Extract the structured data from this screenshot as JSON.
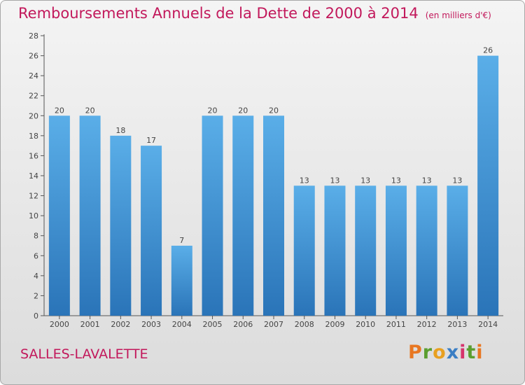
{
  "header": {
    "title": "Remboursements Annuels de la Dette de 2000 à 2014",
    "unit": "(en milliers d'€)"
  },
  "footer": {
    "commune": "SALLES-LAVALETTE",
    "brand": [
      "P",
      "r",
      "o",
      "x",
      "i",
      "t",
      "i"
    ]
  },
  "colors": {
    "title": "#c2185b",
    "bar_top": "#5aaee8",
    "bar_bottom": "#2a74b8",
    "brand_letters": [
      "#e87722",
      "#5a9e2f",
      "#e8a020",
      "#3a7ec4",
      "#d6336c",
      "#5a9e2f",
      "#e87722"
    ]
  },
  "chart_data": {
    "type": "bar",
    "title": "Remboursements Annuels de la Dette de 2000 à 2014",
    "ylabel": "en milliers d'€",
    "xlabel": "",
    "categories": [
      "2000",
      "2001",
      "2002",
      "2003",
      "2004",
      "2005",
      "2006",
      "2007",
      "2008",
      "2009",
      "2010",
      "2011",
      "2012",
      "2013",
      "2014"
    ],
    "values": [
      20,
      20,
      18,
      17,
      7,
      20,
      20,
      20,
      13,
      13,
      13,
      13,
      13,
      13,
      26
    ],
    "ylim": [
      0,
      28
    ],
    "yticks": [
      0,
      2,
      4,
      6,
      8,
      10,
      12,
      14,
      16,
      18,
      20,
      22,
      24,
      26,
      28
    ],
    "grid": false
  }
}
